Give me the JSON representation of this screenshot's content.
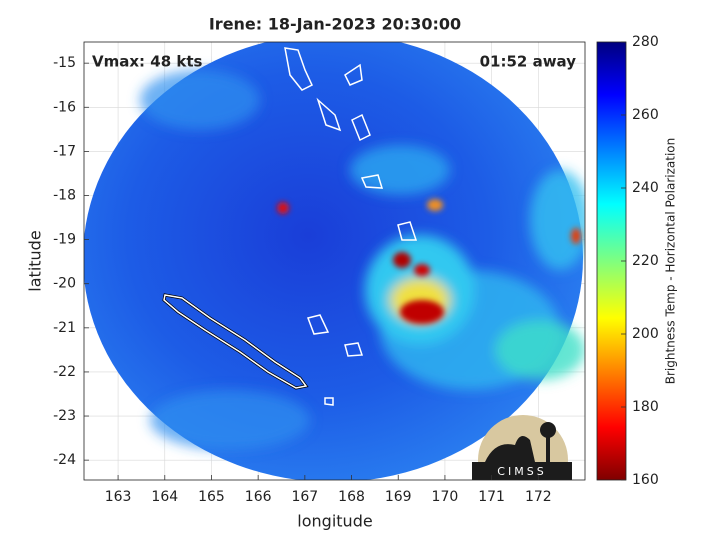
{
  "chart_data": {
    "type": "map",
    "title": "Irene: 18-Jan-2023 20:30:00",
    "annotations": [
      "Vmax: 48 kts",
      "01:52 away"
    ],
    "xlabel": "longitude",
    "ylabel": "latitude",
    "xlim": [
      162.27,
      173.0
    ],
    "xticks": [
      163,
      164,
      165,
      166,
      167,
      168,
      169,
      170,
      171,
      172
    ],
    "ylim": [
      -24.45,
      -14.52
    ],
    "yticks": [
      -15,
      -16,
      -17,
      -18,
      -19,
      -20,
      -21,
      -22,
      -23,
      -24
    ],
    "grid": true,
    "colorbar": {
      "label": "Brightness Temp - Horizontal Polarization",
      "lim": [
        160,
        280
      ],
      "ticks": [
        160,
        180,
        200,
        220,
        240,
        260,
        280
      ]
    },
    "logo": "CIMSS"
  }
}
